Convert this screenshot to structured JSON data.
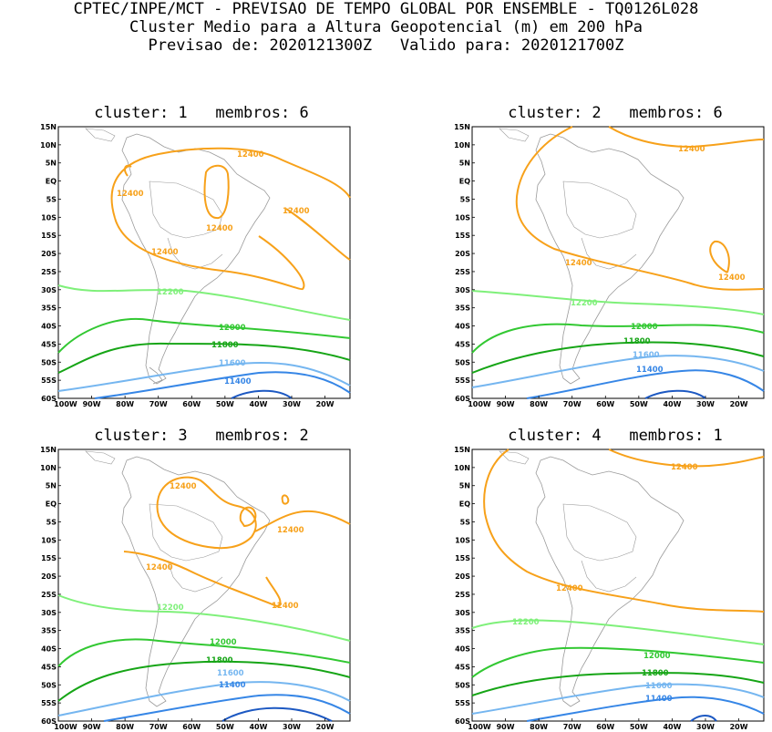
{
  "header": {
    "line1": "CPTEC/INPE/MCT - PREVISAO DE TEMPO GLOBAL POR ENSEMBLE - TQ0126L028",
    "line2": "Cluster Medio para a Altura Geopotencial (m) em 200 hPa",
    "line3": "Previsao de: 2020121300Z   Valido para: 2020121700Z"
  },
  "axes": {
    "lat_labels": [
      "15N",
      "10N",
      "5N",
      "EQ",
      "5S",
      "10S",
      "15S",
      "20S",
      "25S",
      "30S",
      "35S",
      "40S",
      "45S",
      "50S",
      "55S",
      "60S"
    ],
    "lon_labels": [
      "100W",
      "90W",
      "80W",
      "70W",
      "60W",
      "50W",
      "40W",
      "30W",
      "20W"
    ]
  },
  "colors": {
    "c12400": "#f7a11a",
    "c12200": "#7ff07a",
    "c12000": "#32c832",
    "c11800": "#16a516",
    "c11600": "#75b6f0",
    "c11400": "#3686e6",
    "c11200": "#1c58c2",
    "land": "#9a9a9a"
  },
  "panels": [
    {
      "title": "cluster: 1   membros: 6",
      "labels": {
        "a": "12400",
        "b": "12400",
        "c": "12400",
        "d": "12400",
        "e": "12400",
        "l12200": "12200",
        "l12000": "12000",
        "l11800": "11800",
        "l11600": "11600",
        "l11400": "11400"
      }
    },
    {
      "title": "cluster: 2   membros: 6",
      "labels": {
        "a": "12400",
        "b": "12400",
        "c": "12400",
        "l12200": "12200",
        "l12000": "12000",
        "l11800": "11800",
        "l11600": "11600",
        "l11400": "11400"
      }
    },
    {
      "title": "cluster: 3   membros: 2",
      "labels": {
        "a": "12400",
        "b": "12400",
        "c": "12400",
        "d": "12400",
        "l12200": "12200",
        "l12000": "12000",
        "l11800": "11800",
        "l11600": "11600",
        "l11400": "11400"
      }
    },
    {
      "title": "cluster: 4   membros: 1",
      "labels": {
        "a": "12400",
        "b": "12400",
        "l12200": "12200",
        "l12000": "12000",
        "l11800": "11800",
        "l11600": "11600",
        "l11400": "11400"
      }
    }
  ]
}
